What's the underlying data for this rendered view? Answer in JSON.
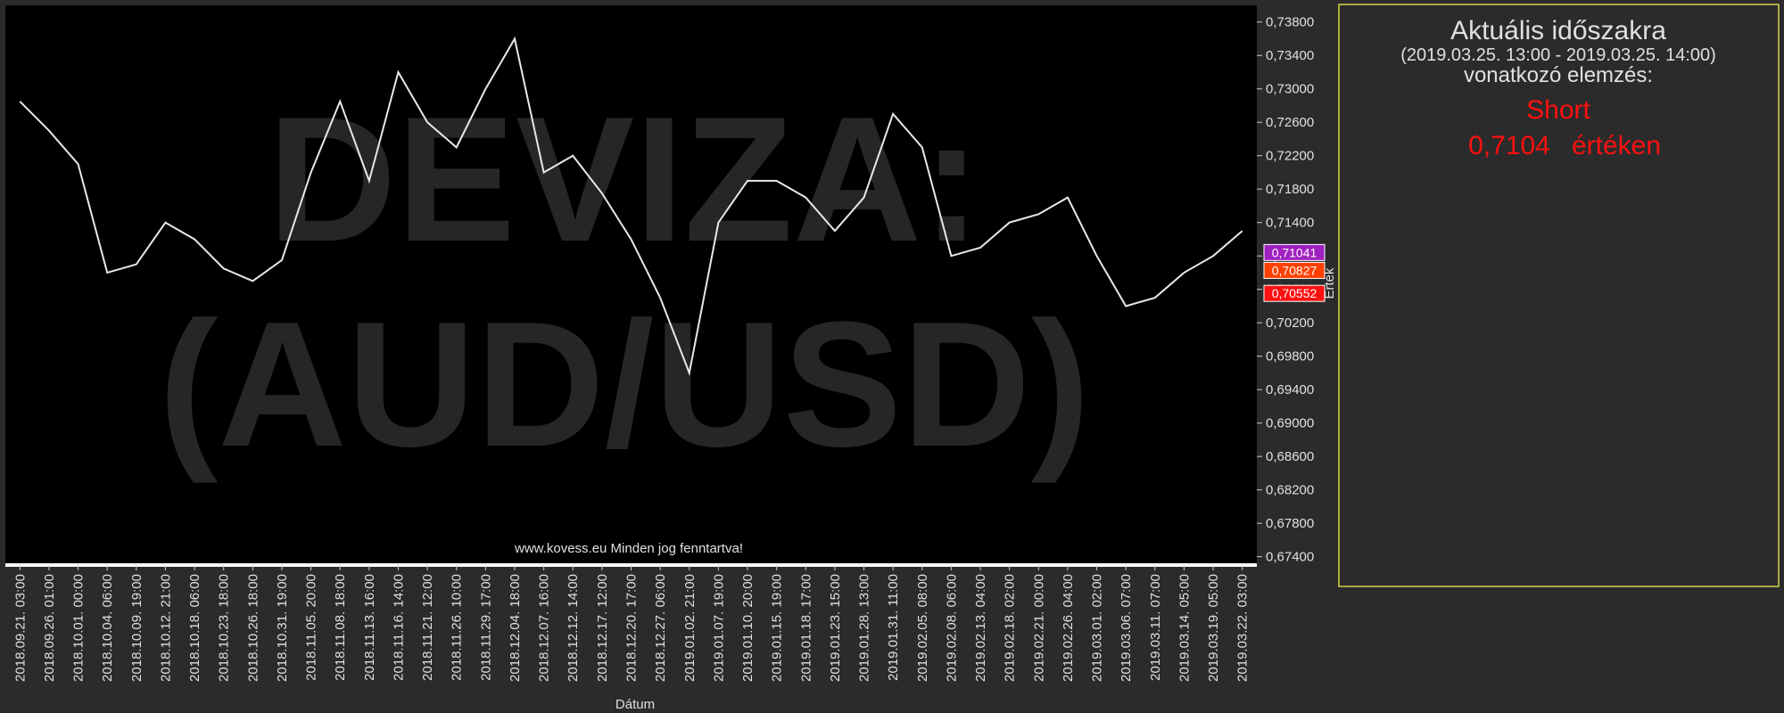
{
  "chart_data": {
    "type": "line",
    "watermark": [
      "DEVIZA:",
      "(AUD/USD)"
    ],
    "footer": "www.kovess.eu Minden jog fenntartva!",
    "x_label": "Dátum",
    "y_label": "Érték",
    "categories": [
      "2018.09.21. 03:00",
      "2018.09.26. 01:00",
      "2018.10.01. 00:00",
      "2018.10.04. 06:00",
      "2018.10.09. 19:00",
      "2018.10.12. 21:00",
      "2018.10.18. 06:00",
      "2018.10.23. 18:00",
      "2018.10.26. 18:00",
      "2018.10.31. 19:00",
      "2018.11.05. 20:00",
      "2018.11.08. 18:00",
      "2018.11.13. 16:00",
      "2018.11.16. 14:00",
      "2018.11.21. 12:00",
      "2018.11.26. 10:00",
      "2018.11.29. 17:00",
      "2018.12.04. 18:00",
      "2018.12.07. 16:00",
      "2018.12.12. 14:00",
      "2018.12.17. 12:00",
      "2018.12.20. 17:00",
      "2018.12.27. 06:00",
      "2019.01.02. 21:00",
      "2019.01.07. 19:00",
      "2019.01.10. 20:00",
      "2019.01.15. 19:00",
      "2019.01.18. 17:00",
      "2019.01.23. 15:00",
      "2019.01.28. 13:00",
      "2019.01.31. 11:00",
      "2019.02.05. 08:00",
      "2019.02.08. 06:00",
      "2019.02.13. 04:00",
      "2019.02.18. 02:00",
      "2019.02.21. 00:00",
      "2019.02.26. 04:00",
      "2019.03.01. 02:00",
      "2019.03.06. 07:00",
      "2019.03.11. 07:00",
      "2019.03.14. 05:00",
      "2019.03.19. 05:00",
      "2019.03.22. 03:00"
    ],
    "values": [
      0.7285,
      0.725,
      0.721,
      0.708,
      0.709,
      0.714,
      0.712,
      0.7085,
      0.707,
      0.7095,
      0.72,
      0.7285,
      0.719,
      0.732,
      0.726,
      0.723,
      0.73,
      0.736,
      0.72,
      0.722,
      0.7175,
      0.712,
      0.705,
      0.696,
      0.714,
      0.719,
      0.719,
      0.717,
      0.713,
      0.717,
      0.727,
      0.723,
      0.71,
      0.711,
      0.714,
      0.715,
      0.717,
      0.71,
      0.704,
      0.705,
      0.708,
      0.71,
      0.713
    ],
    "color": "#e8e8e8",
    "ylim": [
      0.673,
      0.74
    ],
    "yticks": [
      {
        "value": 0.674,
        "label": "0,67400"
      },
      {
        "value": 0.678,
        "label": "0,67800"
      },
      {
        "value": 0.682,
        "label": "0,68200"
      },
      {
        "value": 0.686,
        "label": "0,68600"
      },
      {
        "value": 0.69,
        "label": "0,69000"
      },
      {
        "value": 0.694,
        "label": "0,69400"
      },
      {
        "value": 0.698,
        "label": "0,69800"
      },
      {
        "value": 0.702,
        "label": "0,70200"
      },
      {
        "value": 0.706,
        "label": "0,70600"
      },
      {
        "value": 0.71,
        "label": "0,71000"
      },
      {
        "value": 0.714,
        "label": "0,71400"
      },
      {
        "value": 0.718,
        "label": "0,71800"
      },
      {
        "value": 0.722,
        "label": "0,72200"
      },
      {
        "value": 0.726,
        "label": "0,72600"
      },
      {
        "value": 0.73,
        "label": "0,73000"
      },
      {
        "value": 0.734,
        "label": "0,73400"
      },
      {
        "value": 0.738,
        "label": "0,73800"
      }
    ],
    "price_tags": [
      {
        "value": 0.71041,
        "label": "0,71041",
        "color": "#a020c0"
      },
      {
        "value": 0.70827,
        "label": "0,70827",
        "color": "#ff4000"
      },
      {
        "value": 0.70552,
        "label": "0,70552",
        "color": "#ff1010"
      }
    ]
  },
  "panel": {
    "title": "Aktuális időszakra",
    "period": "(2019.03.25. 13:00 - 2019.03.25. 14:00)",
    "subtitle": "vonatkozó elemzés:",
    "signal": "Short",
    "price": "0,7104",
    "price_suffix": "értéken"
  }
}
